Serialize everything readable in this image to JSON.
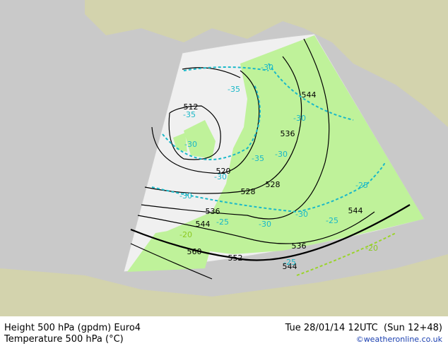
{
  "map": {
    "height_labels": [
      "512",
      "520",
      "528",
      "528",
      "536",
      "536",
      "536",
      "544",
      "544",
      "544",
      "544",
      "552",
      "560"
    ],
    "temperature_labels": [
      "-35",
      "-30",
      "-35",
      "-30",
      "-30",
      "-30",
      "-35",
      "-30",
      "-30",
      "-30",
      "-30",
      "-25",
      "-25",
      "-25",
      "-25",
      "-20",
      "-20"
    ]
  },
  "footer": {
    "line1": "Height 500 hPa (gpdm) Euro4",
    "line2": "Temperature 500 hPa (°C)",
    "datetime": "Tue 28/01/14 12UTC  (Sun 12+48)",
    "credit": "©weatheronline.co.uk"
  }
}
